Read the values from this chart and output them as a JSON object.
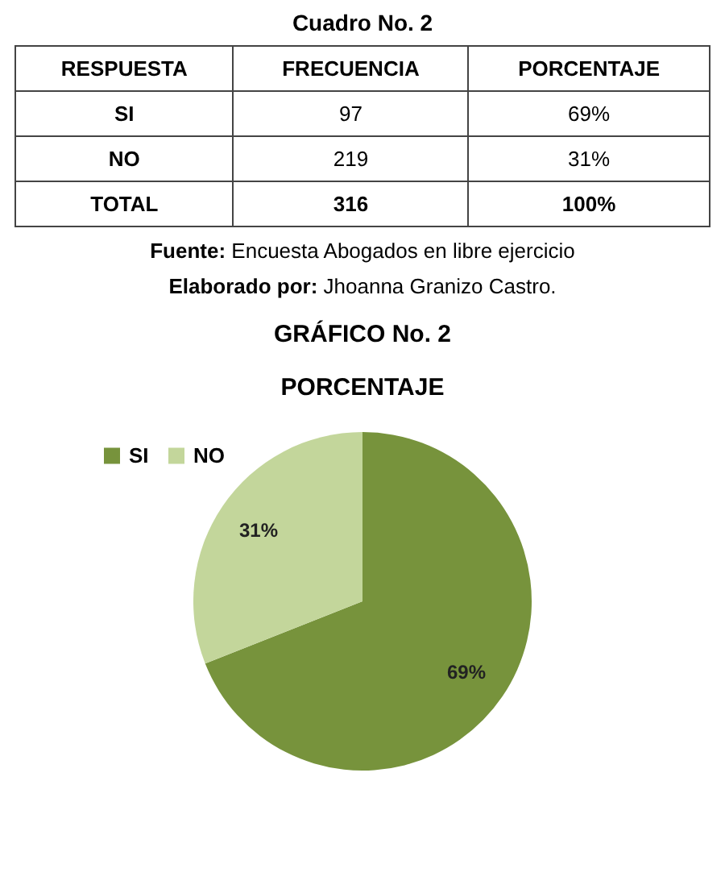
{
  "chart_data": [
    {
      "type": "other",
      "title": "Cuadro No. 2",
      "annotations": [
        "RESPUESTA",
        "FRECUENCIA",
        "PORCENTAJE",
        "SI",
        "97",
        "69%",
        "NO",
        "219",
        "31%",
        "TOTAL",
        "316",
        "100%",
        "Fuente: Encuesta Abogados en libre ejercicio",
        "Elaborado por: Jhoanna Granizo Castro."
      ]
    },
    {
      "type": "pie",
      "title": "GRÁFICO No. 2",
      "subtitle": "PORCENTAJE",
      "categories": [
        "SI",
        "NO"
      ],
      "values": [
        69,
        31
      ],
      "colors": [
        "#77933c",
        "#c3d69b"
      ],
      "value_labels": [
        "69%",
        "31%"
      ],
      "legend": "top left"
    }
  ]
}
